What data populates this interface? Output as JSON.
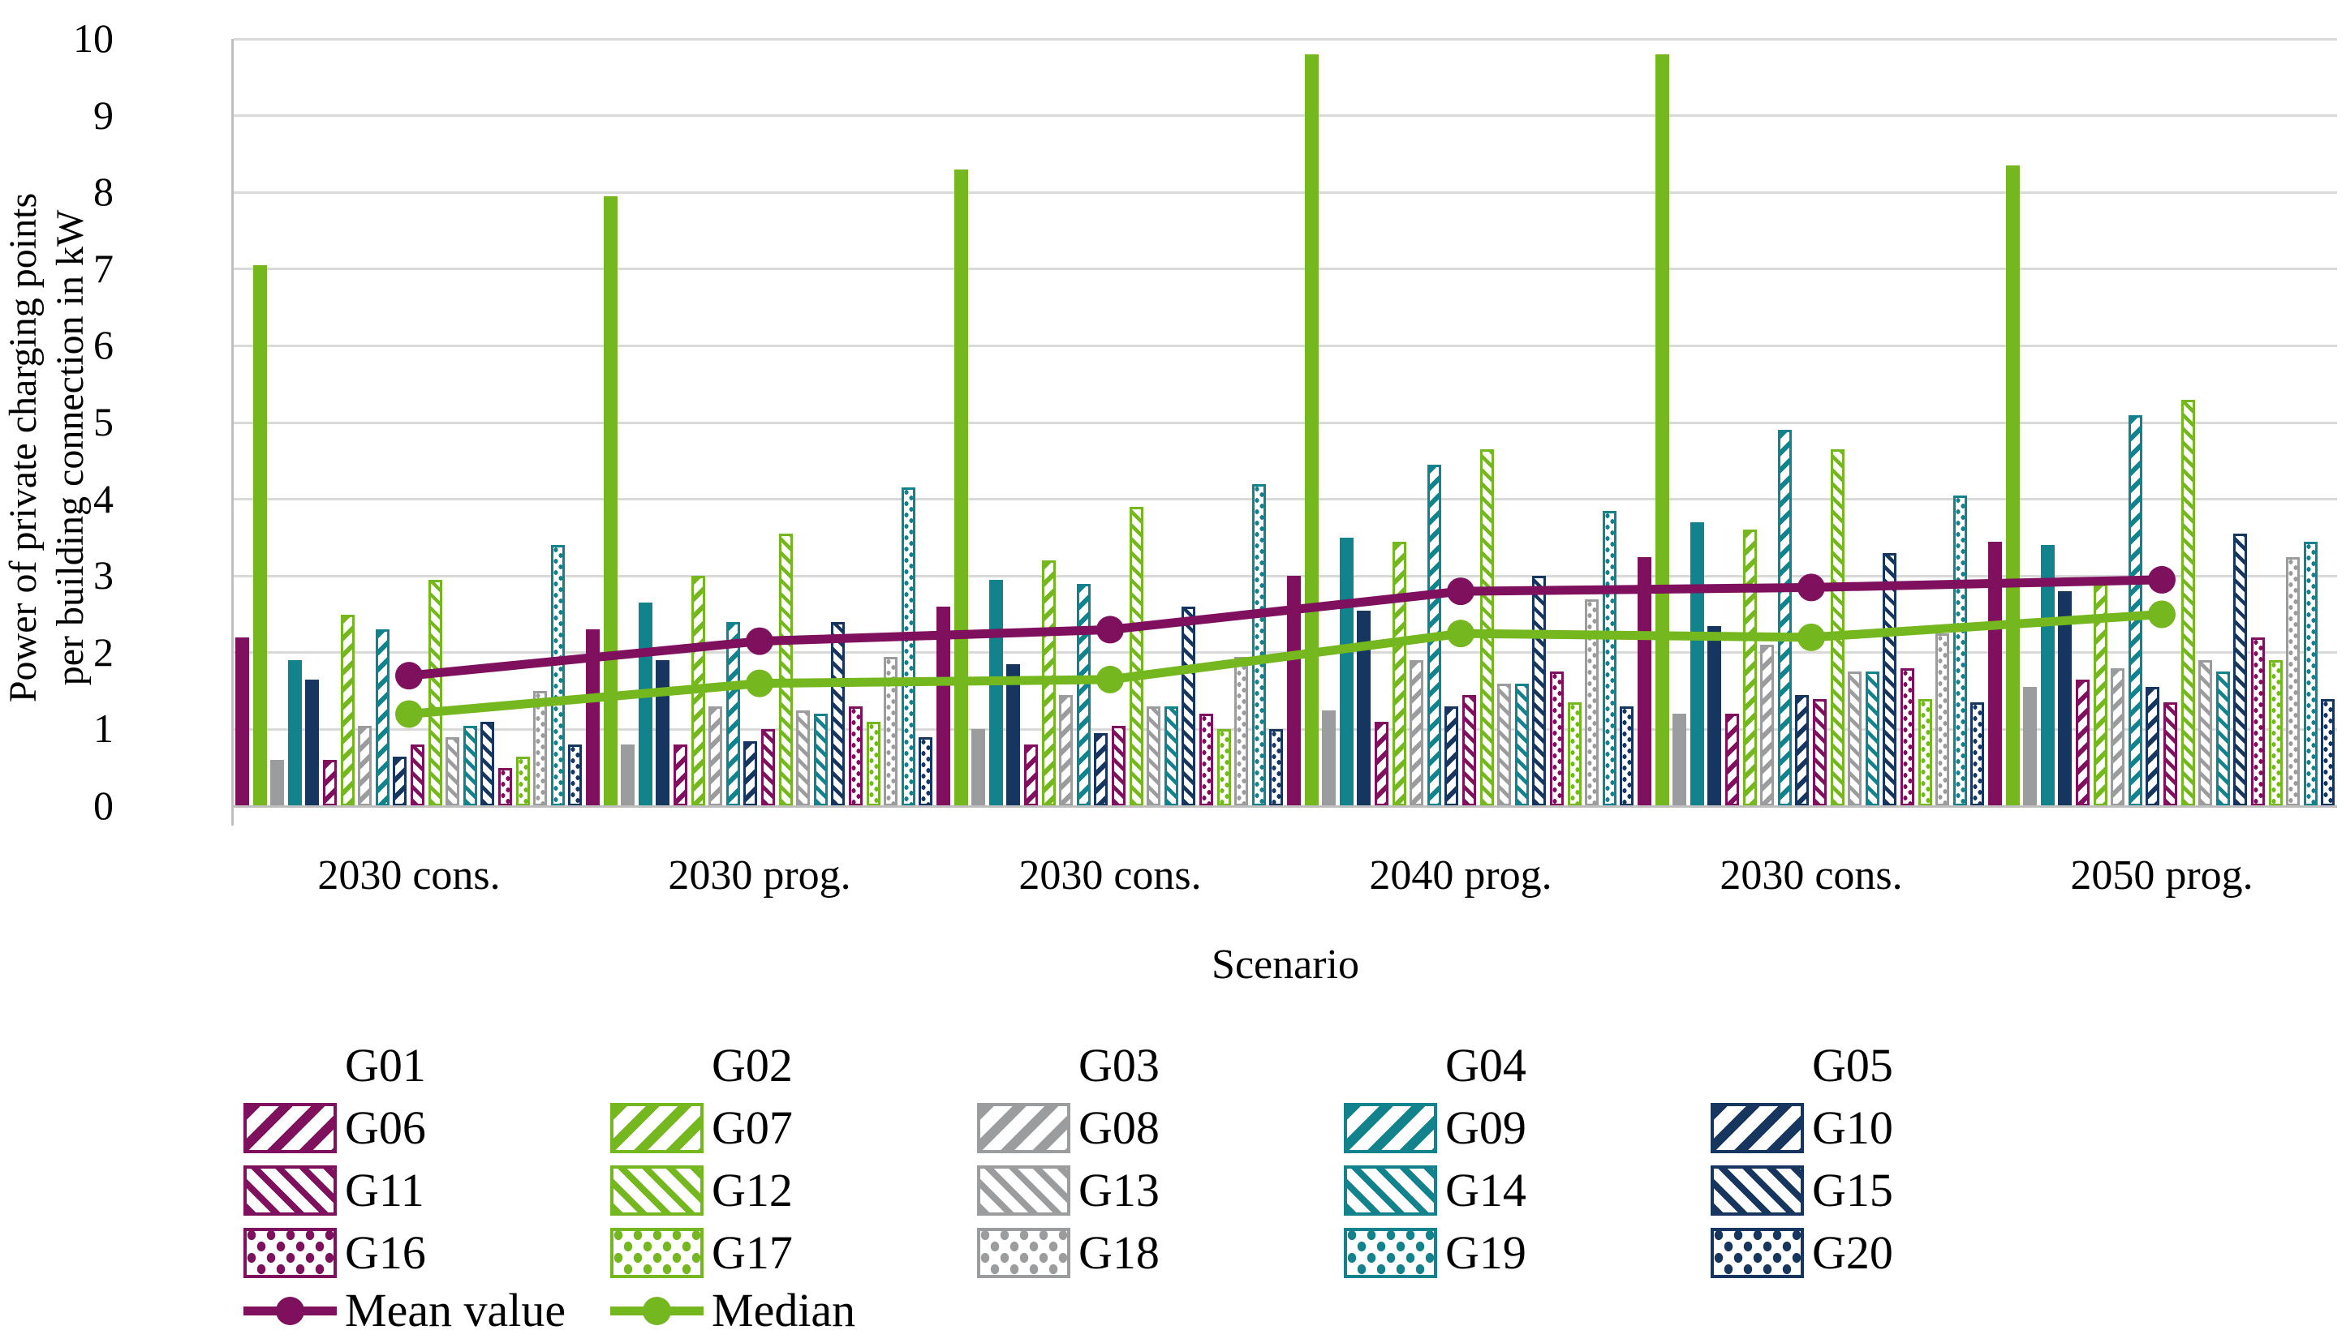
{
  "figure": {
    "y_axis": {
      "title_line1": "Power of private charging points",
      "title_line2": "per building connection in kW",
      "tick_min": 0,
      "tick_max": 10,
      "tick_step": 1
    },
    "x_axis": {
      "title": "Scenario"
    },
    "colors": {
      "purple": "#7E105E",
      "green": "#75B71E",
      "gray": "#9A9C9E",
      "teal": "#12828C",
      "navy": "#16365F",
      "grid": "#D9D9D9",
      "axis": "#BFBFBF"
    }
  },
  "chart_data": {
    "type": "bar",
    "title": "",
    "xlabel": "Scenario",
    "ylabel": "Power of private charging points per building connection in kW",
    "ylim": [
      0,
      10
    ],
    "grid": "horizontal",
    "legend_position": "bottom",
    "categories": [
      "2030 cons.",
      "2030 prog.",
      "2030 cons.",
      "2040 prog.",
      "2030 cons.",
      "2050 prog."
    ],
    "series": [
      {
        "name": "G01",
        "color": "purple",
        "pattern": "solid",
        "values": [
          2.2,
          2.3,
          2.6,
          3.0,
          3.25,
          3.45
        ]
      },
      {
        "name": "G02",
        "color": "green",
        "pattern": "solid",
        "values": [
          7.05,
          7.95,
          8.3,
          9.8,
          9.8,
          8.35
        ]
      },
      {
        "name": "G03",
        "color": "gray",
        "pattern": "solid",
        "values": [
          0.6,
          0.8,
          1.0,
          1.25,
          1.2,
          1.55
        ]
      },
      {
        "name": "G04",
        "color": "teal",
        "pattern": "solid",
        "values": [
          1.9,
          2.65,
          2.95,
          3.5,
          3.7,
          3.4
        ]
      },
      {
        "name": "G05",
        "color": "navy",
        "pattern": "solid",
        "values": [
          1.65,
          1.9,
          1.85,
          2.55,
          2.35,
          2.8
        ]
      },
      {
        "name": "G06",
        "color": "purple",
        "pattern": "fwd",
        "values": [
          0.6,
          0.8,
          0.8,
          1.1,
          1.2,
          1.65
        ]
      },
      {
        "name": "G07",
        "color": "green",
        "pattern": "fwd",
        "values": [
          2.5,
          3.0,
          3.2,
          3.45,
          3.6,
          2.9
        ]
      },
      {
        "name": "G08",
        "color": "gray",
        "pattern": "fwd",
        "values": [
          1.05,
          1.3,
          1.45,
          1.9,
          2.1,
          1.8
        ]
      },
      {
        "name": "G09",
        "color": "teal",
        "pattern": "fwd",
        "values": [
          2.3,
          2.4,
          2.9,
          4.45,
          4.9,
          5.1
        ]
      },
      {
        "name": "G10",
        "color": "navy",
        "pattern": "fwd",
        "values": [
          0.65,
          0.85,
          0.95,
          1.3,
          1.45,
          1.55
        ]
      },
      {
        "name": "G11",
        "color": "purple",
        "pattern": "back",
        "values": [
          0.8,
          1.0,
          1.05,
          1.45,
          1.4,
          1.35
        ]
      },
      {
        "name": "G12",
        "color": "green",
        "pattern": "back",
        "values": [
          2.95,
          3.55,
          3.9,
          4.65,
          4.65,
          5.3
        ]
      },
      {
        "name": "G13",
        "color": "gray",
        "pattern": "back",
        "values": [
          0.9,
          1.25,
          1.3,
          1.6,
          1.75,
          1.9
        ]
      },
      {
        "name": "G14",
        "color": "teal",
        "pattern": "back",
        "values": [
          1.05,
          1.2,
          1.3,
          1.6,
          1.75,
          1.75
        ]
      },
      {
        "name": "G15",
        "color": "navy",
        "pattern": "back",
        "values": [
          1.1,
          2.4,
          2.6,
          3.0,
          3.3,
          3.55
        ]
      },
      {
        "name": "G16",
        "color": "purple",
        "pattern": "dot",
        "values": [
          0.5,
          1.3,
          1.2,
          1.75,
          1.8,
          2.2
        ]
      },
      {
        "name": "G17",
        "color": "green",
        "pattern": "dot",
        "values": [
          0.65,
          1.1,
          1.0,
          1.35,
          1.4,
          1.9
        ]
      },
      {
        "name": "G18",
        "color": "gray",
        "pattern": "dot",
        "values": [
          1.5,
          1.95,
          1.95,
          2.7,
          2.25,
          3.25
        ]
      },
      {
        "name": "G19",
        "color": "teal",
        "pattern": "dot",
        "values": [
          3.4,
          4.15,
          4.2,
          3.85,
          4.05,
          3.45
        ]
      },
      {
        "name": "G20",
        "color": "navy",
        "pattern": "dot",
        "values": [
          0.8,
          0.9,
          1.0,
          1.3,
          1.35,
          1.4
        ]
      }
    ],
    "lines": [
      {
        "name": "Mean value",
        "color": "purple",
        "values": [
          1.7,
          2.15,
          2.3,
          2.8,
          2.85,
          2.95
        ]
      },
      {
        "name": "Median",
        "color": "green",
        "values": [
          1.2,
          1.6,
          1.65,
          2.25,
          2.2,
          2.5
        ]
      }
    ]
  }
}
